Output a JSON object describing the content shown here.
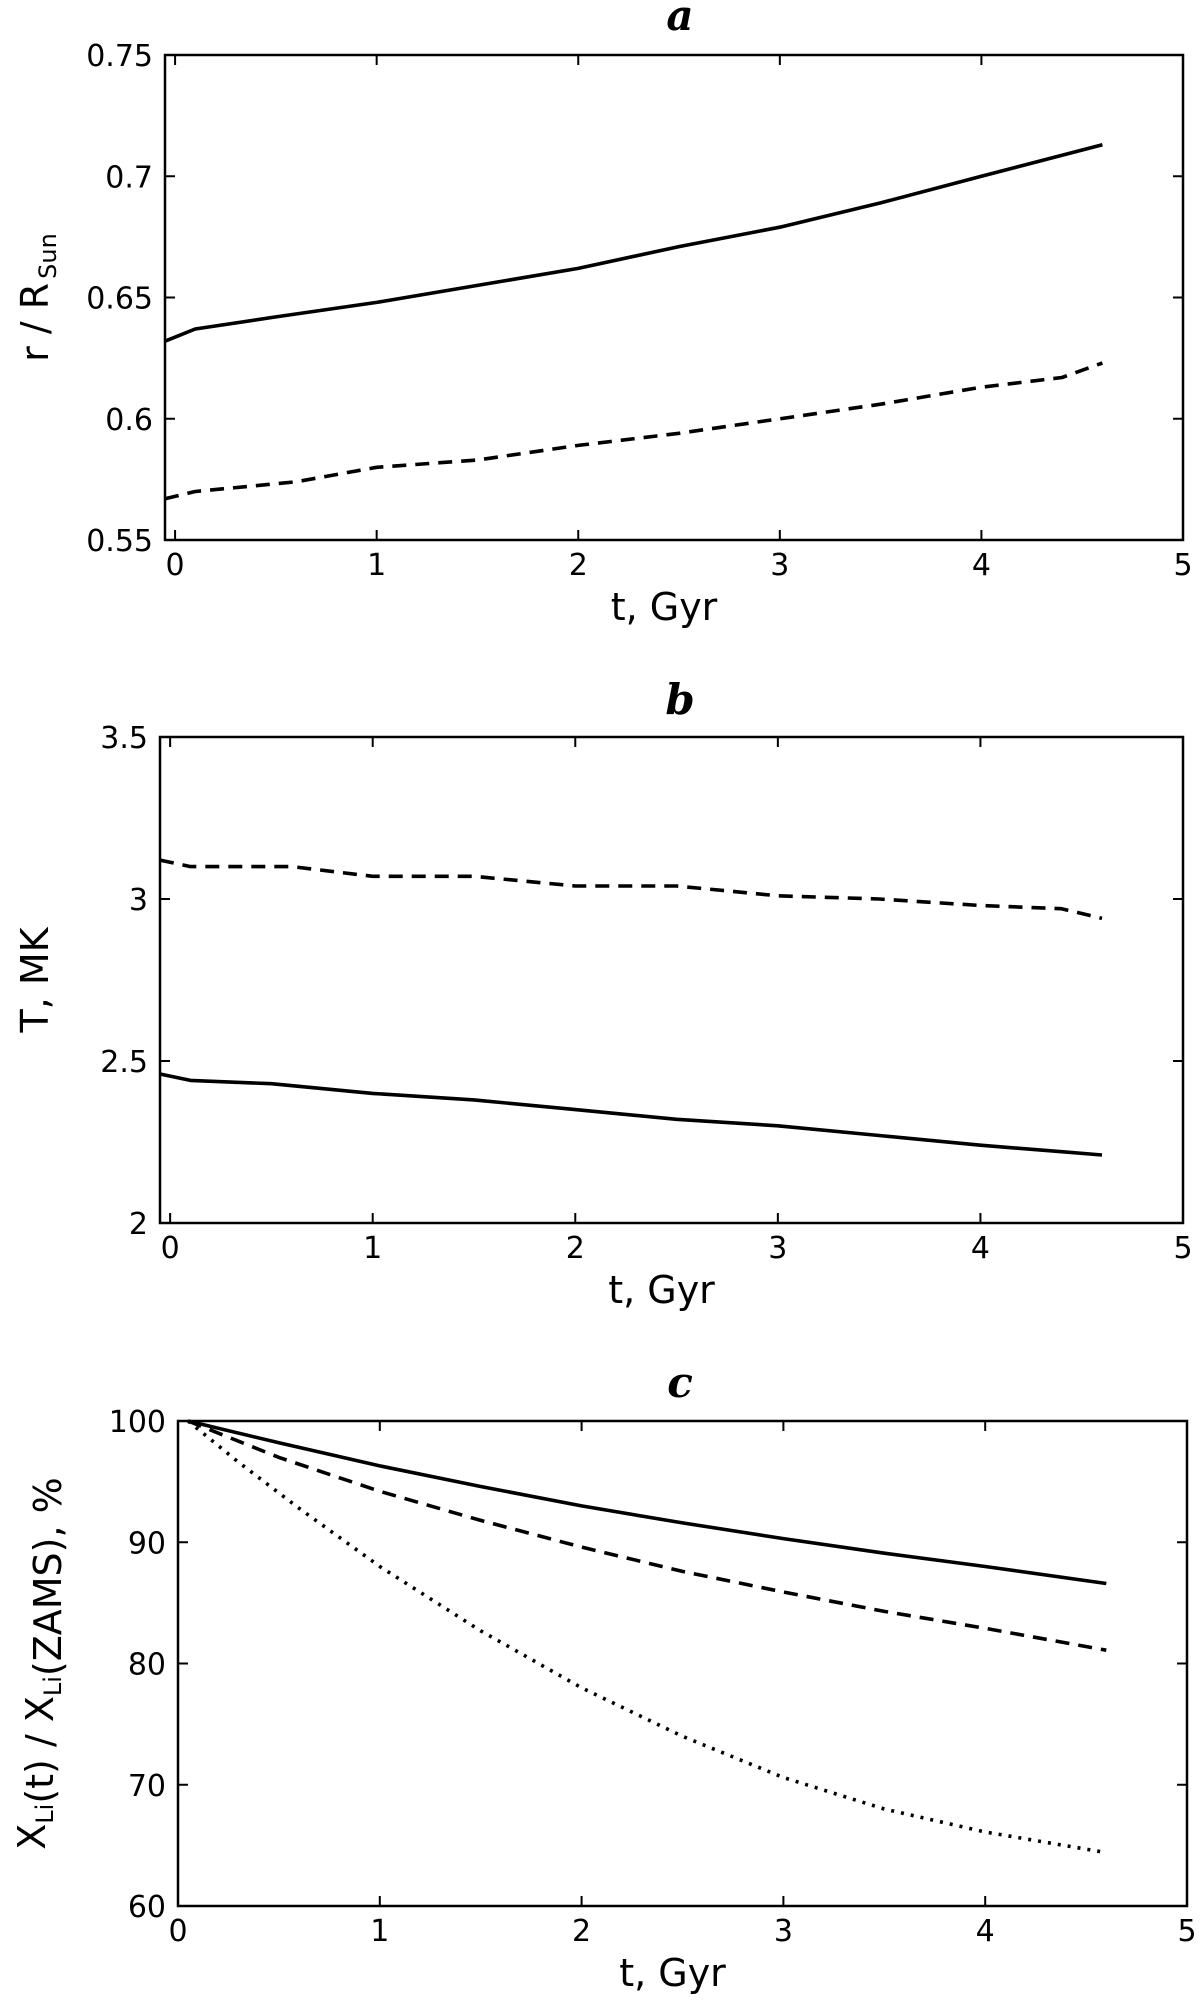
{
  "chart_data": [
    {
      "type": "line",
      "title": "a",
      "xlabel": "t, Gyr",
      "ylabel": {
        "main": "r / R",
        "sub": "Sun"
      },
      "xlim": [
        -0.05,
        5
      ],
      "ylim": [
        0.55,
        0.75
      ],
      "xticks": [
        0,
        1,
        2,
        3,
        4,
        5
      ],
      "xtick_labels": [
        "0",
        "1",
        "2",
        "3",
        "4",
        "5"
      ],
      "yticks": [
        0.55,
        0.6,
        0.65,
        0.7,
        0.75
      ],
      "ytick_labels": [
        "0.55",
        "0.6",
        "0.65",
        "0.7",
        "0.75"
      ],
      "grid": false,
      "series": [
        {
          "style": "solid",
          "x": [
            -0.05,
            0.1,
            0.5,
            1.0,
            1.5,
            2.0,
            2.5,
            3.0,
            3.5,
            4.0,
            4.6
          ],
          "y": [
            0.632,
            0.637,
            0.642,
            0.648,
            0.655,
            0.662,
            0.671,
            0.679,
            0.689,
            0.7,
            0.713
          ]
        },
        {
          "style": "dashed",
          "x": [
            -0.05,
            0.1,
            0.6,
            1.0,
            1.5,
            2.0,
            2.5,
            3.0,
            3.5,
            4.0,
            4.4,
            4.6
          ],
          "y": [
            0.567,
            0.57,
            0.574,
            0.58,
            0.583,
            0.589,
            0.594,
            0.6,
            0.606,
            0.613,
            0.617,
            0.623
          ]
        }
      ]
    },
    {
      "type": "line",
      "title": "b",
      "xlabel": "t, Gyr",
      "ylabel": {
        "main": "T, MK",
        "sub": ""
      },
      "xlim": [
        -0.05,
        5
      ],
      "ylim": [
        2,
        3.5
      ],
      "xticks": [
        0,
        1,
        2,
        3,
        4,
        5
      ],
      "xtick_labels": [
        "0",
        "1",
        "2",
        "3",
        "4",
        "5"
      ],
      "yticks": [
        2,
        2.5,
        3,
        3.5
      ],
      "ytick_labels": [
        "2",
        "2.5",
        "3",
        "3.5"
      ],
      "grid": false,
      "series": [
        {
          "style": "solid",
          "x": [
            -0.05,
            0.1,
            0.5,
            1.0,
            1.5,
            2.0,
            2.5,
            3.0,
            3.5,
            4.0,
            4.4,
            4.6
          ],
          "y": [
            2.46,
            2.44,
            2.43,
            2.4,
            2.38,
            2.35,
            2.32,
            2.3,
            2.27,
            2.24,
            2.22,
            2.21
          ]
        },
        {
          "style": "dashed",
          "x": [
            -0.05,
            0.1,
            0.6,
            1.0,
            1.5,
            2.0,
            2.5,
            3.0,
            3.5,
            4.0,
            4.4,
            4.6
          ],
          "y": [
            3.12,
            3.1,
            3.1,
            3.07,
            3.07,
            3.04,
            3.04,
            3.01,
            3.0,
            2.98,
            2.97,
            2.94
          ]
        }
      ]
    },
    {
      "type": "line",
      "title": "c",
      "xlabel": "t, Gyr",
      "ylabel": {
        "pre": "X",
        "pre_sub": "Li",
        "mid": "(t) / X",
        "mid_sub": "Li",
        "post": "(ZAMS), %"
      },
      "xlim": [
        0,
        5
      ],
      "ylim": [
        60,
        100
      ],
      "xticks": [
        0,
        1,
        2,
        3,
        4,
        5
      ],
      "xtick_labels": [
        "0",
        "1",
        "2",
        "3",
        "4",
        "5"
      ],
      "yticks": [
        60,
        70,
        80,
        90,
        100
      ],
      "ytick_labels": [
        "60",
        "70",
        "80",
        "90",
        "100"
      ],
      "grid": false,
      "series": [
        {
          "style": "solid",
          "x": [
            0.05,
            0.5,
            1.0,
            1.5,
            2.0,
            2.5,
            3.0,
            3.5,
            4.0,
            4.6
          ],
          "y": [
            100,
            98.2,
            96.3,
            94.6,
            93.0,
            91.6,
            90.3,
            89.1,
            88.0,
            86.6
          ]
        },
        {
          "style": "dashed",
          "x": [
            0.05,
            0.5,
            1.0,
            1.5,
            2.0,
            2.5,
            3.0,
            3.5,
            4.0,
            4.6
          ],
          "y": [
            100,
            97.0,
            94.2,
            91.8,
            89.6,
            87.6,
            85.9,
            84.3,
            82.9,
            81.1
          ]
        },
        {
          "style": "dotted",
          "x": [
            0.05,
            0.3,
            0.6,
            1.0,
            1.5,
            2.0,
            2.5,
            3.0,
            3.5,
            4.0,
            4.6
          ],
          "y": [
            100,
            96.6,
            92.8,
            88.0,
            82.7,
            78.0,
            74.0,
            70.6,
            68.0,
            66.1,
            64.4
          ]
        }
      ]
    }
  ]
}
